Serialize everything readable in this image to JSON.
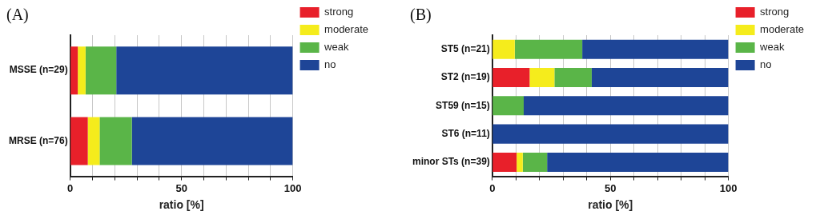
{
  "chart_data": [
    {
      "type": "bar",
      "title": "(A)",
      "orientation": "horizontal",
      "stacked": true,
      "xlabel": "ratio [%]",
      "categories": [
        "MSSE (n=29)",
        "MRSE (n=76)"
      ],
      "series": [
        {
          "name": "strong",
          "color": "#e8202a",
          "values": [
            3.4,
            7.9
          ]
        },
        {
          "name": "moderate",
          "color": "#f5ec1c",
          "values": [
            3.5,
            5.3
          ]
        },
        {
          "name": "weak",
          "color": "#5ab548",
          "values": [
            13.8,
            14.5
          ]
        },
        {
          "name": "no",
          "color": "#1e4597",
          "values": [
            79.3,
            72.3
          ]
        }
      ],
      "xlim": [
        0,
        100
      ],
      "xticks": [
        0,
        {
          "value": 10,
          "label": null
        },
        {
          "value": 20,
          "label": null
        },
        {
          "value": 30,
          "label": null
        },
        {
          "value": 40,
          "label": null
        },
        50,
        {
          "value": 60,
          "label": null
        },
        {
          "value": 70,
          "label": null
        },
        {
          "value": 80,
          "label": null
        },
        {
          "value": 90,
          "label": null
        },
        100
      ],
      "grid": "x",
      "legend": "right"
    },
    {
      "type": "bar",
      "title": "(B)",
      "orientation": "horizontal",
      "stacked": true,
      "xlabel": "ratio [%]",
      "categories": [
        "ST5 (n=21)",
        "ST2 (n=19)",
        "ST59 (n=15)",
        "ST6 (n=11)",
        "minor STs (n=39)"
      ],
      "series": [
        {
          "name": "strong",
          "color": "#e8202a",
          "values": [
            0,
            15.8,
            0,
            0,
            10.3
          ]
        },
        {
          "name": "moderate",
          "color": "#f5ec1c",
          "values": [
            9.5,
            10.5,
            0,
            0,
            2.6
          ]
        },
        {
          "name": "weak",
          "color": "#5ab548",
          "values": [
            28.6,
            15.8,
            13.3,
            0,
            10.3
          ]
        },
        {
          "name": "no",
          "color": "#1e4597",
          "values": [
            61.9,
            57.9,
            86.7,
            100,
            76.8
          ]
        }
      ],
      "xlim": [
        0,
        100
      ],
      "xticks": [
        0,
        {
          "value": 10,
          "label": null
        },
        {
          "value": 20,
          "label": null
        },
        {
          "value": 30,
          "label": null
        },
        {
          "value": 40,
          "label": null
        },
        50,
        {
          "value": 60,
          "label": null
        },
        {
          "value": 70,
          "label": null
        },
        {
          "value": 80,
          "label": null
        },
        {
          "value": 90,
          "label": null
        },
        100
      ],
      "grid": "x",
      "legend": "right"
    }
  ]
}
